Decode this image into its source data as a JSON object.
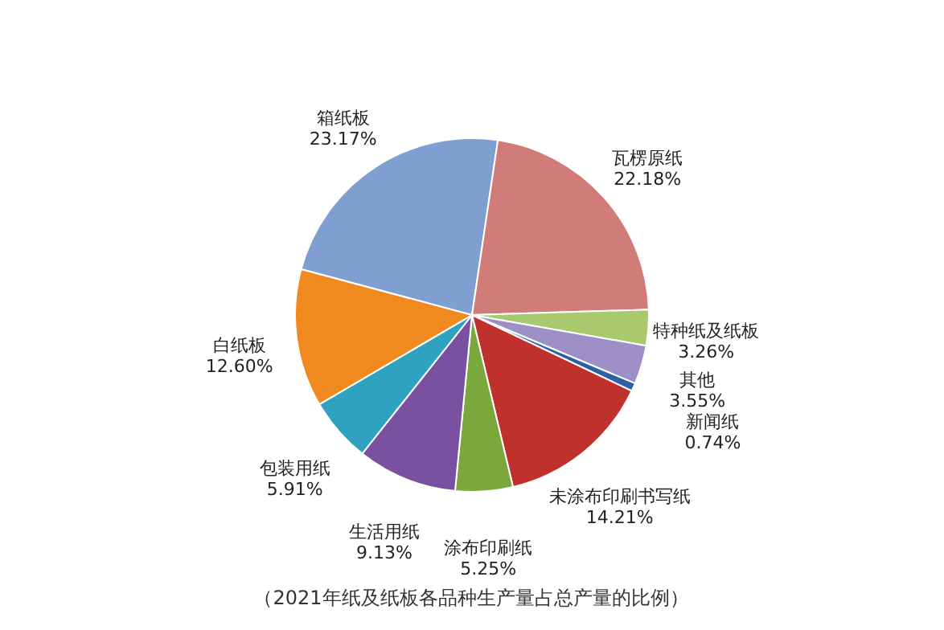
{
  "chart_data": {
    "type": "pie",
    "annotations": [
      "（2021年纸及纸板各品种生产量占总产量的比例）"
    ],
    "categories": [
      "箱纸板",
      "瓦楞原纸",
      "特种纸及纸板",
      "其他",
      "新闻纸",
      "未涂布印刷书写纸",
      "涂布印刷纸",
      "生活用纸",
      "包装用纸",
      "白纸板"
    ],
    "values": [
      23.17,
      22.18,
      3.26,
      3.55,
      0.74,
      14.21,
      5.25,
      9.13,
      5.91,
      12.6
    ],
    "value_labels": [
      "23.17%",
      "22.18%",
      "3.26%",
      "3.55%",
      "0.74%",
      "14.21%",
      "5.25%",
      "9.13%",
      "5.91%",
      "12.60%"
    ],
    "colors": [
      "#7f9fd0",
      "#d27c7a",
      "#a8c96c",
      "#9d90c6",
      "#2f5fa5",
      "#c0302c",
      "#7aa83c",
      "#7a50a0",
      "#2ea2c0",
      "#f08a1e"
    ]
  }
}
